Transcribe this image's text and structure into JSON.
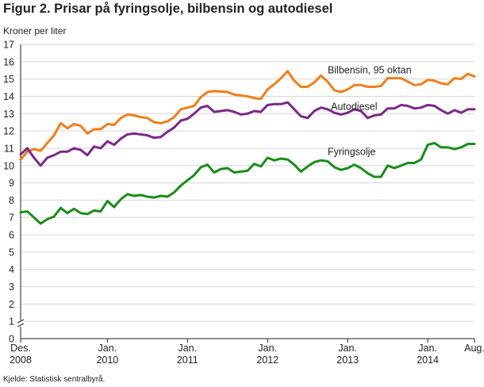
{
  "title": "Figur 2. Prisar på fyringsolje, bilbensin og autodiesel",
  "source": "Kjelde: Statistisk sentralbyrå.",
  "chart_data": {
    "type": "line",
    "ylabel": "Kroner per liter",
    "ylim": [
      0,
      17
    ],
    "yticks": [
      0,
      1,
      2,
      3,
      4,
      5,
      6,
      7,
      8,
      9,
      10,
      11,
      12,
      13,
      14,
      15,
      16,
      17
    ],
    "axis_break": true,
    "grid": true,
    "x_start": "2008-12",
    "x_end": "2014-08",
    "xtick_labels": [
      {
        "m": 0,
        "line1": "Des.",
        "line2": "2008"
      },
      {
        "m": 13,
        "line1": "Jan.",
        "line2": "2010"
      },
      {
        "m": 25,
        "line1": "Jan.",
        "line2": "2011"
      },
      {
        "m": 37,
        "line1": "Jan.",
        "line2": "2012"
      },
      {
        "m": 49,
        "line1": "Jan.",
        "line2": "2013"
      },
      {
        "m": 61,
        "line1": "Jan.",
        "line2": "2014"
      },
      {
        "m": 68,
        "line1": "Aug.",
        "line2": ""
      }
    ],
    "series": [
      {
        "name": "Bilbensin, 95 oktan",
        "color": "#f07d1a",
        "label_at": [
          46,
          15.5
        ],
        "values": [
          10.35,
          10.8,
          10.95,
          10.85,
          11.3,
          11.75,
          12.45,
          12.15,
          12.4,
          12.3,
          11.85,
          12.1,
          12.1,
          12.4,
          12.35,
          12.75,
          12.95,
          12.9,
          12.8,
          12.75,
          12.5,
          12.45,
          12.55,
          12.8,
          13.25,
          13.35,
          13.45,
          13.95,
          14.25,
          14.3,
          14.28,
          14.25,
          14.1,
          14.05,
          14.0,
          13.9,
          13.85,
          14.4,
          14.7,
          15.05,
          15.45,
          14.9,
          14.55,
          14.55,
          14.8,
          15.2,
          14.85,
          14.35,
          14.25,
          14.4,
          14.65,
          14.65,
          14.55,
          14.55,
          14.6,
          15.05,
          15.05,
          15.05,
          14.85,
          14.65,
          14.7,
          14.95,
          14.9,
          14.75,
          14.7,
          15.05,
          15.0,
          15.3,
          15.15
        ]
      },
      {
        "name": "Autodiesel",
        "color": "#7b2888",
        "label_at": [
          46.5,
          13.4
        ],
        "values": [
          10.65,
          11.0,
          10.45,
          10.0,
          10.45,
          10.6,
          10.8,
          10.8,
          11.0,
          10.9,
          10.6,
          11.1,
          11.0,
          11.4,
          11.2,
          11.55,
          11.8,
          11.85,
          11.8,
          11.75,
          11.6,
          11.65,
          11.95,
          12.2,
          12.6,
          12.7,
          13.0,
          13.35,
          13.45,
          13.1,
          13.15,
          13.2,
          13.1,
          12.95,
          13.0,
          13.15,
          13.1,
          13.5,
          13.55,
          13.55,
          13.65,
          13.25,
          12.85,
          12.75,
          13.15,
          13.35,
          13.25,
          13.05,
          12.95,
          13.05,
          13.25,
          13.15,
          12.75,
          12.9,
          12.95,
          13.3,
          13.3,
          13.5,
          13.45,
          13.3,
          13.35,
          13.5,
          13.45,
          13.2,
          13.0,
          13.2,
          13.05,
          13.25,
          13.25
        ]
      },
      {
        "name": "Fyringsolje",
        "color": "#1a8c1a",
        "label_at": [
          46,
          10.8
        ],
        "values": [
          7.3,
          7.35,
          7.0,
          6.65,
          6.9,
          7.05,
          7.55,
          7.25,
          7.5,
          7.25,
          7.2,
          7.4,
          7.35,
          7.95,
          7.6,
          8.05,
          8.35,
          8.25,
          8.3,
          8.2,
          8.15,
          8.25,
          8.2,
          8.45,
          8.85,
          9.15,
          9.45,
          9.9,
          10.05,
          9.6,
          9.8,
          9.85,
          9.6,
          9.65,
          9.7,
          10.1,
          9.95,
          10.45,
          10.3,
          10.4,
          10.35,
          10.05,
          9.65,
          9.95,
          10.2,
          10.3,
          10.25,
          9.9,
          9.75,
          9.85,
          10.05,
          9.85,
          9.55,
          9.35,
          9.35,
          10.0,
          9.85,
          10.0,
          10.15,
          10.15,
          10.35,
          11.2,
          11.3,
          11.05,
          11.05,
          10.95,
          11.05,
          11.25,
          11.25
        ]
      }
    ]
  }
}
